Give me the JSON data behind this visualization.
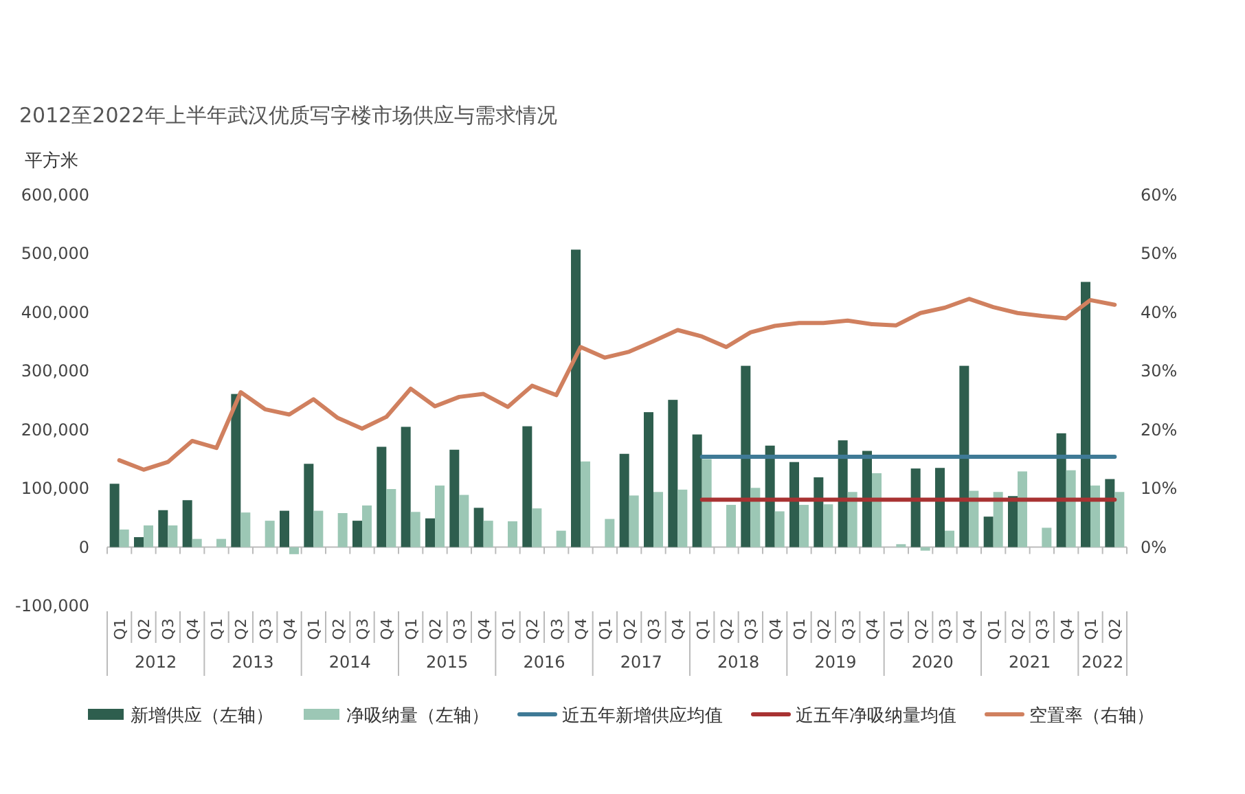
{
  "chart_data": {
    "type": "bar",
    "title": "2012至2022年上半年武汉优质写字楼市场供应与需求情况",
    "ylabel": "平方米",
    "categories": [
      "Q1",
      "Q2",
      "Q3",
      "Q4",
      "Q1",
      "Q2",
      "Q3",
      "Q4",
      "Q1",
      "Q2",
      "Q3",
      "Q4",
      "Q1",
      "Q2",
      "Q3",
      "Q4",
      "Q1",
      "Q2",
      "Q3",
      "Q4",
      "Q1",
      "Q2",
      "Q3",
      "Q4",
      "Q1",
      "Q2",
      "Q3",
      "Q4",
      "Q1",
      "Q2",
      "Q3",
      "Q4",
      "Q1",
      "Q2",
      "Q3",
      "Q4",
      "Q1",
      "Q2",
      "Q3",
      "Q4",
      "Q1",
      "Q2"
    ],
    "annotations": [
      "2012",
      "2013",
      "2014",
      "2015",
      "2016",
      "2017",
      "2018",
      "2019",
      "2020",
      "2021",
      "2022"
    ],
    "series": [
      {
        "name": "新增供应（左轴）",
        "color": "#2e5e4e",
        "values": [
          108000,
          17000,
          63000,
          80000,
          0,
          261000,
          0,
          62000,
          142000,
          0,
          45000,
          171000,
          205000,
          49000,
          166000,
          67000,
          0,
          206000,
          0,
          507000,
          0,
          159000,
          230000,
          251000,
          192000,
          0,
          309000,
          173000,
          145000,
          119000,
          182000,
          164000,
          0,
          134000,
          135000,
          309000,
          52000,
          87000,
          0,
          194000,
          452000,
          116000
        ]
      },
      {
        "name": "净吸纳量（左轴）",
        "color": "#9cc7b5",
        "values": [
          30000,
          37000,
          37000,
          14000,
          14000,
          59000,
          45000,
          -12000,
          62000,
          58000,
          71000,
          99000,
          60000,
          105000,
          89000,
          45000,
          44000,
          66000,
          28000,
          146000,
          48000,
          88000,
          94000,
          98000,
          150000,
          72000,
          101000,
          61000,
          72000,
          73000,
          94000,
          126000,
          5000,
          -6000,
          28000,
          96000,
          94000,
          129000,
          33000,
          131000,
          105000,
          94000
        ]
      },
      {
        "name": "近五年新增供应均值",
        "type": "line",
        "color": "#3f7a96",
        "values": [
          null,
          null,
          null,
          null,
          null,
          null,
          null,
          null,
          null,
          null,
          null,
          null,
          null,
          null,
          null,
          null,
          null,
          null,
          null,
          null,
          null,
          null,
          null,
          null,
          154000,
          154000,
          154000,
          154000,
          154000,
          154000,
          154000,
          154000,
          154000,
          154000,
          154000,
          154000,
          154000,
          154000,
          154000,
          154000,
          154000,
          154000
        ]
      },
      {
        "name": "近五年净吸纳量均值",
        "type": "line",
        "color": "#a83232",
        "values": [
          null,
          null,
          null,
          null,
          null,
          null,
          null,
          null,
          null,
          null,
          null,
          null,
          null,
          null,
          null,
          null,
          null,
          null,
          null,
          null,
          null,
          null,
          null,
          null,
          81000,
          81000,
          81000,
          81000,
          81000,
          81000,
          81000,
          81000,
          81000,
          81000,
          81000,
          81000,
          81000,
          81000,
          81000,
          81000,
          81000,
          81000
        ]
      },
      {
        "name": "空置率（右轴）",
        "type": "line",
        "axis": "y2",
        "color": "#d0805f",
        "values": [
          14.8,
          13.2,
          14.5,
          18.1,
          16.9,
          26.4,
          23.5,
          22.6,
          25.2,
          22.0,
          20.2,
          22.2,
          27.0,
          24.0,
          25.6,
          26.1,
          23.9,
          27.5,
          25.9,
          34.1,
          32.3,
          33.3,
          35.1,
          37.0,
          35.9,
          34.1,
          36.6,
          37.7,
          38.2,
          38.2,
          38.6,
          38.0,
          37.8,
          39.9,
          40.8,
          42.3,
          40.9,
          39.9,
          39.4,
          39.0,
          42.1,
          41.3
        ]
      }
    ],
    "ylim": [
      -100000,
      600000
    ],
    "yticks": [
      {
        "value": -100000,
        "label": "-100,000"
      },
      0,
      {
        "value": 100000,
        "label": "100,000"
      },
      {
        "value": 200000,
        "label": "200,000"
      },
      {
        "value": 300000,
        "label": "300,000"
      },
      {
        "value": 400000,
        "label": "400,000"
      },
      {
        "value": 500000,
        "label": "500,000"
      },
      {
        "value": 600000,
        "label": "600,000"
      }
    ],
    "y2lim": [
      0,
      60
    ],
    "y2ticks": [
      {
        "value": 0,
        "label": "0%"
      },
      {
        "value": 10,
        "label": "10%"
      },
      {
        "value": 20,
        "label": "20%"
      },
      {
        "value": 30,
        "label": "30%"
      },
      {
        "value": 40,
        "label": "40%"
      },
      {
        "value": 50,
        "label": "50%"
      },
      {
        "value": 60,
        "label": "60%"
      }
    ],
    "legend": "bottom"
  }
}
